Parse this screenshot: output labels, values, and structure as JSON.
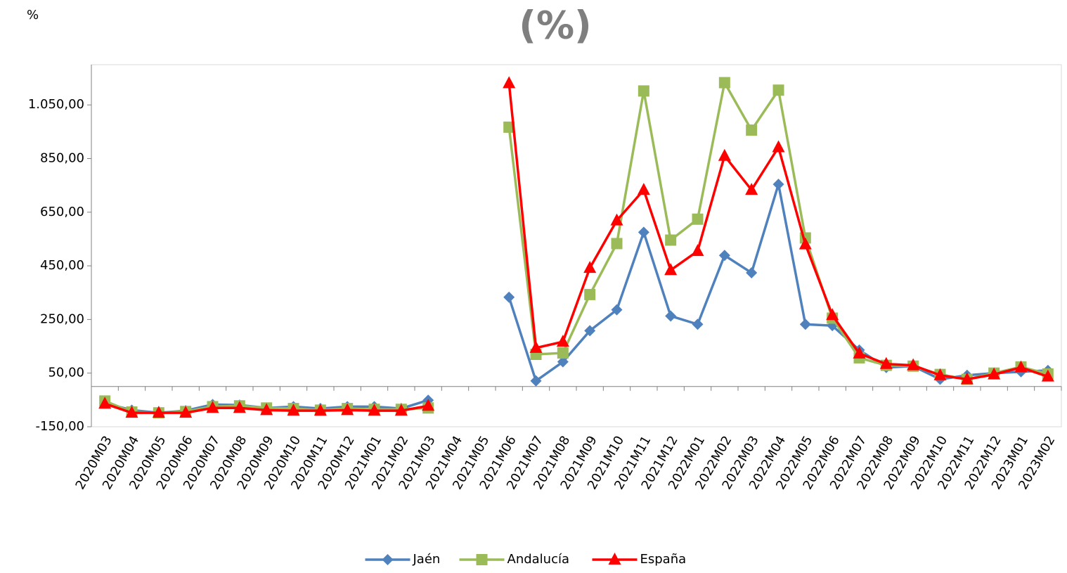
{
  "chart_data": {
    "type": "line",
    "title": "(%)",
    "y_label": "%",
    "categories": [
      "2020M03",
      "2020M04",
      "2020M05",
      "2020M06",
      "2020M07",
      "2020M08",
      "2020M09",
      "2020M10",
      "2020M11",
      "2020M12",
      "2021M01",
      "2021M02",
      "2021M03",
      "2021M04",
      "2021M05",
      "2021M06",
      "2021M07",
      "2021M08",
      "2021M09",
      "2021M10",
      "2021M11",
      "2021M12",
      "2022M01",
      "2022M02",
      "2022M03",
      "2022M04",
      "2022M05",
      "2022M06",
      "2022M07",
      "2022M08",
      "2022M09",
      "2022M10",
      "2022M11",
      "2022M12",
      "2023M01",
      "2023M02"
    ],
    "series": [
      {
        "name": "Jaén",
        "color": "#4f81bd",
        "marker": "diamond",
        "values": [
          -62,
          -88,
          -98,
          -90,
          -67,
          -69,
          -80,
          -75,
          -82,
          -75,
          -75,
          -82,
          -51,
          null,
          null,
          333,
          21,
          92,
          208,
          286,
          575,
          263,
          232,
          489,
          424,
          754,
          232,
          227,
          136,
          71,
          76,
          27,
          42,
          50,
          55,
          60
        ]
      },
      {
        "name": "Andalucía",
        "color": "#9bbb59",
        "marker": "square",
        "values": [
          -54,
          -95,
          -98,
          -93,
          -75,
          -72,
          -80,
          -82,
          -88,
          -82,
          -85,
          -85,
          -80,
          null,
          null,
          967,
          120,
          125,
          343,
          533,
          1102,
          546,
          624,
          1133,
          956,
          1105,
          554,
          255,
          107,
          79,
          76,
          45,
          27,
          50,
          73,
          47
        ]
      },
      {
        "name": "España",
        "color": "#ff0000",
        "marker": "triangle",
        "values": [
          -64,
          -98,
          -98,
          -98,
          -80,
          -80,
          -88,
          -90,
          -90,
          -88,
          -90,
          -90,
          -72,
          null,
          null,
          1131,
          144,
          167,
          442,
          619,
          733,
          434,
          505,
          860,
          733,
          892,
          530,
          266,
          123,
          84,
          79,
          42,
          27,
          45,
          71,
          37
        ]
      }
    ],
    "ylim": [
      -150,
      1200
    ],
    "yticks": [
      {
        "value": -150,
        "label": "-150,00"
      },
      {
        "value": 50,
        "label": "50,00"
      },
      {
        "value": 250,
        "label": "250,00"
      },
      {
        "value": 450,
        "label": "450,00"
      },
      {
        "value": 650,
        "label": "650,00"
      },
      {
        "value": 850,
        "label": "850,00"
      },
      {
        "value": 1050,
        "label": "1.050,00"
      }
    ],
    "legend": "bottom"
  }
}
